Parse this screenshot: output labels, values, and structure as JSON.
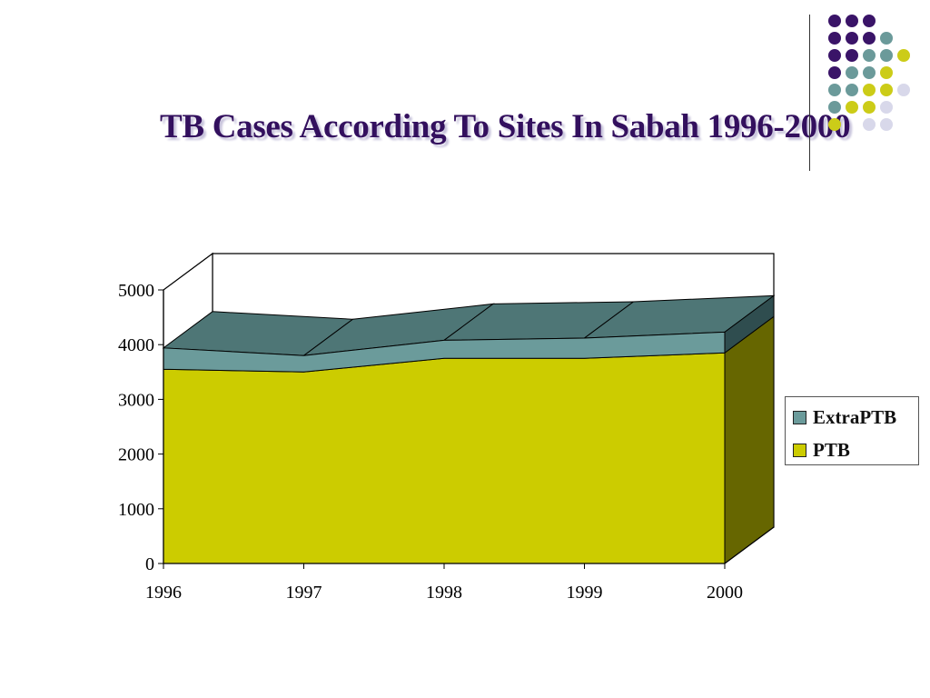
{
  "slide": {
    "title": "TB Cases According To Sites In Sabah 1996-2000"
  },
  "decoration": {
    "dot_colors": {
      "purple": "#3a1468",
      "teal": "#6b9a9a",
      "yellow": "#cccc18",
      "lavender": "#d8d8ea"
    }
  },
  "legend": {
    "items": [
      {
        "label": "ExtraPTB",
        "color": "#6b9b9b"
      },
      {
        "label": "PTB",
        "color": "#cccc00"
      }
    ]
  },
  "chart_data": {
    "type": "area",
    "stacked": true,
    "three_d": true,
    "title": "TB Cases According To Sites In Sabah 1996-2000",
    "xlabel": "",
    "ylabel": "",
    "categories": [
      "1996",
      "1997",
      "1998",
      "1999",
      "2000"
    ],
    "series": [
      {
        "name": "PTB",
        "values": [
          3550,
          3500,
          3750,
          3750,
          3850
        ],
        "color": "#cccc00"
      },
      {
        "name": "ExtraPTB",
        "values": [
          390,
          300,
          330,
          370,
          380
        ],
        "color": "#6b9b9b"
      }
    ],
    "yticks": [
      "0",
      "1000",
      "2000",
      "3000",
      "4000",
      "5000"
    ],
    "ylim": [
      0,
      5000
    ],
    "grid": false,
    "legend_position": "right"
  }
}
